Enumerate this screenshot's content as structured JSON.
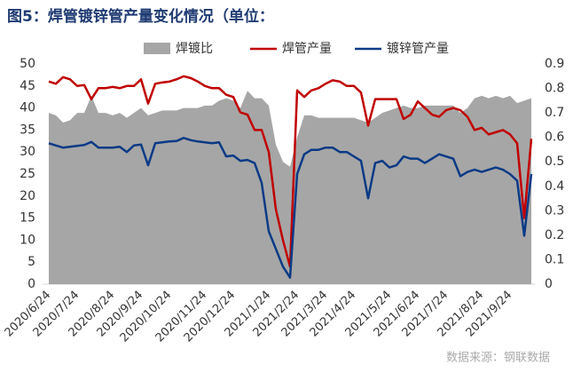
{
  "chart_data": {
    "type": "line",
    "title": "图5：焊管镀锌管产量变化情况（单位：",
    "source": "数据来源：钢联数据",
    "categories": [
      "2020/6/24",
      null,
      null,
      null,
      "2020/7/24",
      null,
      null,
      null,
      null,
      "2020/8/24",
      null,
      null,
      null,
      "2020/9/24",
      null,
      null,
      null,
      "2020/10/24",
      null,
      null,
      null,
      null,
      "2020/11/24",
      null,
      null,
      null,
      "2020/12/24",
      null,
      null,
      null,
      null,
      "2021/1/24",
      null,
      null,
      null,
      "2021/2/24",
      null,
      null,
      null,
      "2021/3/24",
      null,
      null,
      null,
      "2021/4/24",
      null,
      null,
      null,
      null,
      "2021/5/24",
      null,
      null,
      null,
      "2021/6/24",
      null,
      null,
      null,
      "2021/7/24",
      null,
      null,
      null,
      null,
      "2021/8/24",
      null,
      null,
      null,
      "2021/9/24",
      null,
      null,
      null
    ],
    "series": [
      {
        "name": "焊镀比",
        "color": "#a6a6a6",
        "style": "area",
        "axis": "y2",
        "values": [
          0.7,
          0.69,
          0.66,
          0.67,
          0.7,
          0.7,
          0.77,
          0.7,
          0.7,
          0.69,
          0.7,
          0.68,
          0.7,
          0.72,
          0.69,
          0.7,
          0.71,
          0.71,
          0.71,
          0.72,
          0.72,
          0.72,
          0.73,
          0.73,
          0.75,
          0.76,
          0.75,
          0.72,
          0.79,
          0.76,
          0.76,
          0.73,
          0.57,
          0.5,
          0.48,
          0.6,
          0.69,
          0.69,
          0.68,
          0.68,
          0.68,
          0.68,
          0.68,
          0.68,
          0.67,
          0.66,
          0.68,
          0.7,
          0.71,
          0.72,
          0.73,
          0.72,
          0.72,
          0.73,
          0.73,
          0.73,
          0.73,
          0.73,
          0.7,
          0.72,
          0.76,
          0.77,
          0.76,
          0.77,
          0.76,
          0.77,
          0.74,
          0.75,
          0.76
        ]
      },
      {
        "name": "焊管产量",
        "color": "#c00000",
        "style": "line",
        "values": [
          46,
          45.5,
          47,
          46.5,
          45,
          45.2,
          42,
          44.5,
          44.5,
          44.8,
          44.5,
          45,
          45,
          46.5,
          41,
          45.5,
          45.8,
          46,
          46.5,
          47.2,
          46.8,
          46,
          45,
          44.5,
          44.5,
          43,
          42.5,
          39,
          38.5,
          35,
          35,
          30,
          17,
          10,
          4,
          44,
          42.5,
          44,
          44.5,
          45.5,
          46.3,
          46,
          45,
          45,
          43.5,
          36,
          42,
          42,
          42,
          42,
          37.5,
          38.5,
          41.5,
          40,
          38.5,
          38,
          39.5,
          40,
          39.5,
          38,
          35,
          35.5,
          34,
          34.5,
          35,
          34,
          32,
          15,
          33
        ]
      },
      {
        "name": "镀锌管产量",
        "color": "#0b3a86",
        "style": "line",
        "values": [
          32,
          31.5,
          31,
          31.2,
          31.4,
          31.6,
          32.3,
          31,
          31,
          31,
          31.2,
          30,
          31.5,
          31.7,
          27,
          32,
          32.2,
          32.4,
          32.5,
          33.2,
          32.7,
          32.4,
          32.2,
          32,
          32.2,
          29,
          29.2,
          28,
          28.2,
          27.5,
          23,
          12,
          8,
          4,
          1.5,
          25,
          29.5,
          30.5,
          30.5,
          31,
          31,
          30,
          30,
          29,
          28,
          19.5,
          27.5,
          28,
          26.5,
          27,
          29,
          28.5,
          28.5,
          27.5,
          28.5,
          29.5,
          29,
          28.5,
          24.5,
          25.5,
          26,
          25.5,
          26,
          26.5,
          26,
          25,
          23.5,
          11,
          25
        ]
      }
    ],
    "ylim": [
      0,
      50
    ],
    "yticks": [
      0,
      5,
      10,
      15,
      20,
      25,
      30,
      35,
      40,
      45,
      50
    ],
    "y2lim": [
      0,
      0.9
    ],
    "y2ticks": [
      0,
      0.1,
      0.2,
      0.3,
      0.4,
      0.5,
      0.6,
      0.7,
      0.8,
      0.9
    ],
    "grid": false
  }
}
